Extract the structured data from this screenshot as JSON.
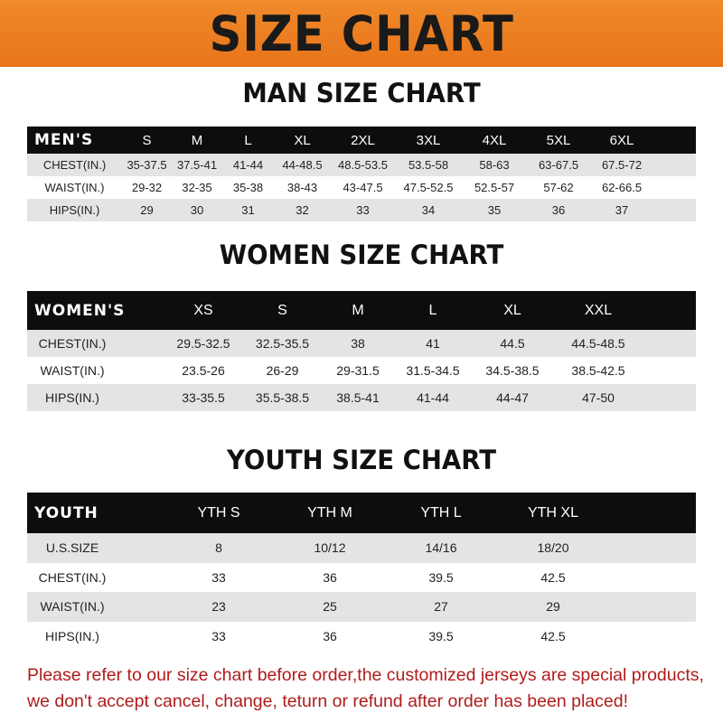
{
  "title": "SIZE CHART",
  "note_lines": [
    "Please refer to our size chart before order,the customized jerseys are special products,",
    "we don't accept cancel, change, teturn or refund after order has been placed!"
  ],
  "colors": {
    "banner": "#ee7f22",
    "header_row": "#0d0d0d",
    "note": "#b01c1c"
  },
  "tables": [
    {
      "id": "men",
      "title": "MAN SIZE CHART",
      "header": [
        "MEN'S",
        "S",
        "M",
        "L",
        "XL",
        "2XL",
        "3XL",
        "4XL",
        "5XL",
        "6XL"
      ],
      "rows": [
        [
          "CHEST(IN.)",
          "35-37.5",
          "37.5-41",
          "41-44",
          "44-48.5",
          "48.5-53.5",
          "53.5-58",
          "58-63",
          "63-67.5",
          "67.5-72"
        ],
        [
          "WAIST(IN.)",
          "29-32",
          "32-35",
          "35-38",
          "38-43",
          "43-47.5",
          "47.5-52.5",
          "52.5-57",
          "57-62",
          "62-66.5"
        ],
        [
          "HIPS(IN.)",
          "29",
          "30",
          "31",
          "32",
          "33",
          "34",
          "35",
          "36",
          "37"
        ]
      ]
    },
    {
      "id": "women",
      "title": "WOMEN SIZE CHART",
      "header": [
        "WOMEN'S",
        "XS",
        "S",
        "M",
        "L",
        "XL",
        "XXL"
      ],
      "rows": [
        [
          "CHEST(IN.)",
          "29.5-32.5",
          "32.5-35.5",
          "38",
          "41",
          "44.5",
          "44.5-48.5"
        ],
        [
          "WAIST(IN.)",
          "23.5-26",
          "26-29",
          "29-31.5",
          "31.5-34.5",
          "34.5-38.5",
          "38.5-42.5"
        ],
        [
          "HIPS(IN.)",
          "33-35.5",
          "35.5-38.5",
          "38.5-41",
          "41-44",
          "44-47",
          "47-50"
        ]
      ]
    },
    {
      "id": "youth",
      "title": "YOUTH SIZE CHART",
      "header": [
        "YOUTH",
        "YTH S",
        "YTH M",
        "YTH L",
        "YTH XL"
      ],
      "rows": [
        [
          "U.S.SIZE",
          "8",
          "10/12",
          "14/16",
          "18/20"
        ],
        [
          "CHEST(IN.)",
          "33",
          "36",
          "39.5",
          "42.5"
        ],
        [
          "WAIST(IN.)",
          "23",
          "25",
          "27",
          "29"
        ],
        [
          "HIPS(IN.)",
          "33",
          "36",
          "39.5",
          "42.5"
        ]
      ]
    }
  ]
}
